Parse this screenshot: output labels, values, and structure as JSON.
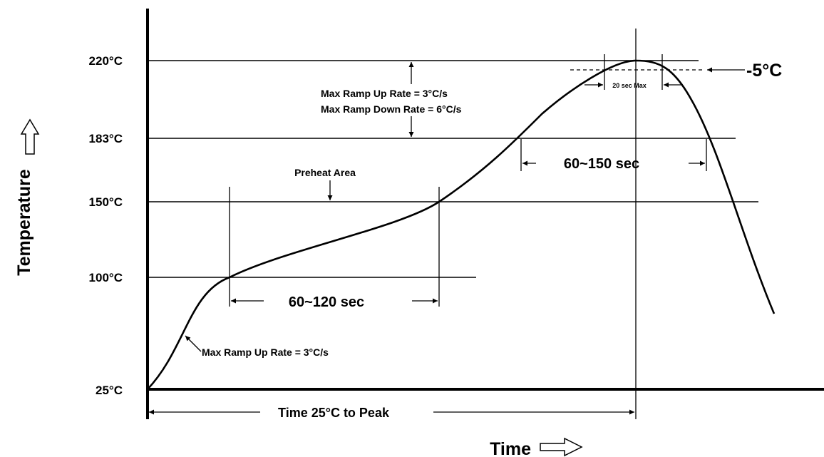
{
  "diagram": {
    "y_axis_label": "Temperature",
    "x_axis_label": "Time",
    "temperature_levels": [
      {
        "label": "220°C",
        "value": 220
      },
      {
        "label": "183°C",
        "value": 183
      },
      {
        "label": "150°C",
        "value": 150
      },
      {
        "label": "100°C",
        "value": 100
      },
      {
        "label": "25°C",
        "value": 25
      }
    ],
    "annotations": {
      "max_ramp_up_top": "Max Ramp Up Rate = 3°C/s",
      "max_ramp_down": "Max Ramp Down Rate = 6°C/s",
      "preheat_area": "Preheat Area",
      "preheat_duration": "60~120 sec",
      "reflow_duration": "60~150 sec",
      "peak_window": "20 sec Max",
      "peak_tolerance": "-5°C",
      "max_ramp_up_bottom": "Max Ramp Up Rate = 3°C/s",
      "time_to_peak": "Time 25°C to Peak"
    }
  }
}
